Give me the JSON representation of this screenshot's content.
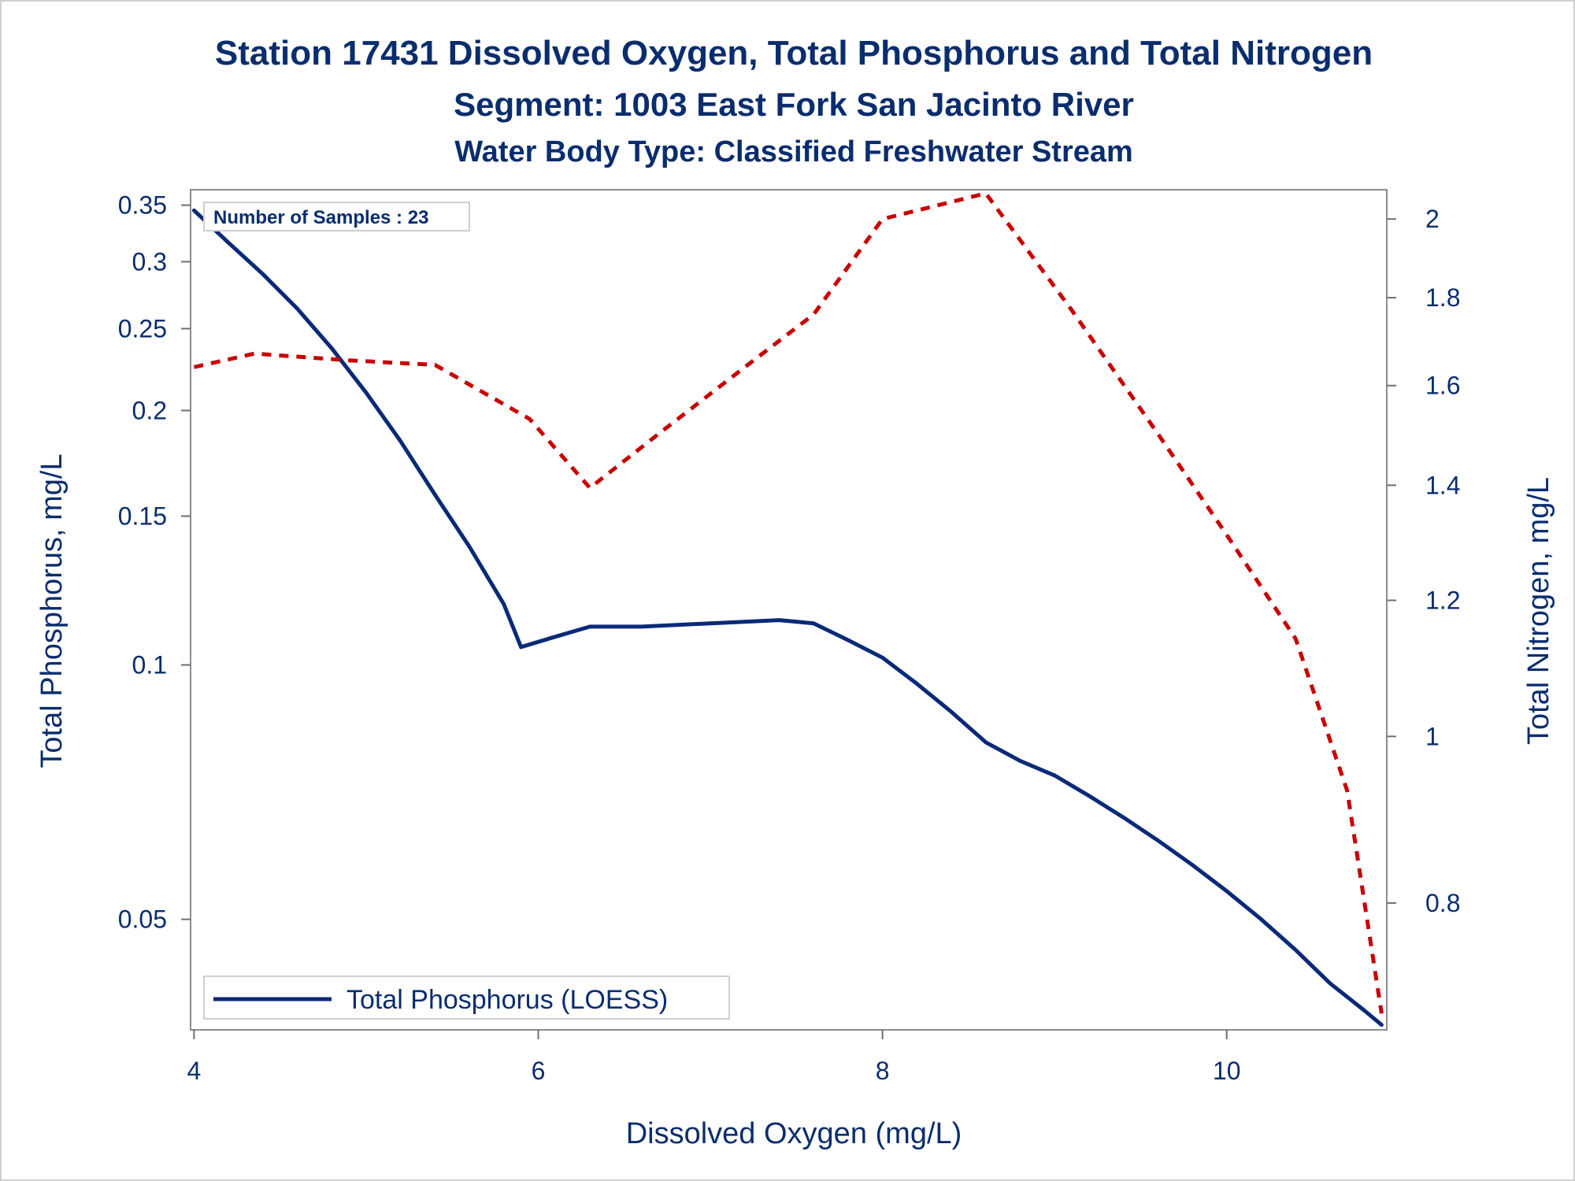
{
  "chart_data": {
    "type": "line",
    "title": "Station 17431  Dissolved Oxygen, Total Phosphorus and Total Nitrogen",
    "subtitle": "Segment: 1003  East Fork San Jacinto River",
    "subtitle2": "Water Body Type: Classified Freshwater Stream",
    "xlabel": "Dissolved Oxygen (mg/L)",
    "ylabel": "Total Phosphorus, mg/L",
    "y2label": "Total Nitrogen, mg/L",
    "xlim": [
      3.98,
      10.93
    ],
    "ylim": [
      0.037,
      0.365
    ],
    "yscale": "log",
    "y2lim": [
      0.675,
      2.08
    ],
    "y2scale": "log",
    "xticks": [
      4,
      6,
      8,
      10
    ],
    "yticks": [
      0.35,
      0.3,
      0.25,
      0.2,
      0.15,
      0.1,
      0.05
    ],
    "y2ticks": [
      2,
      1.8,
      1.6,
      1.4,
      1.2,
      1,
      0.8
    ],
    "xtick_labels": [
      "4",
      "6",
      "8",
      "10"
    ],
    "ytick_labels": [
      "0.35",
      "0.3",
      "0.25",
      "0.2",
      "0.15",
      "0.1",
      "0.05"
    ],
    "y2tick_labels": [
      "2",
      "1.8",
      "1.6",
      "1.4",
      "1.2",
      "1",
      "0.8"
    ],
    "annotation": "Number of Samples : 23",
    "legend": {
      "position": "bottom-left",
      "entries": [
        "Total Phosphorus (LOESS)"
      ]
    },
    "series": [
      {
        "name": "Total Phosphorus (LOESS)",
        "axis": "left",
        "color": "#0a2a78",
        "style": "solid",
        "x": [
          4.0,
          4.2,
          4.4,
          4.6,
          4.8,
          5.0,
          5.2,
          5.4,
          5.6,
          5.8,
          5.9,
          6.1,
          6.3,
          6.6,
          7.0,
          7.4,
          7.6,
          7.8,
          8.0,
          8.2,
          8.4,
          8.6,
          8.8,
          9.0,
          9.2,
          9.4,
          9.6,
          9.8,
          10.0,
          10.2,
          10.4,
          10.6,
          10.8,
          10.9
        ],
        "y": [
          0.345,
          0.316,
          0.29,
          0.264,
          0.237,
          0.21,
          0.184,
          0.159,
          0.138,
          0.118,
          0.105,
          0.108,
          0.111,
          0.111,
          0.112,
          0.113,
          0.112,
          0.107,
          0.102,
          0.095,
          0.088,
          0.081,
          0.077,
          0.074,
          0.07,
          0.066,
          0.062,
          0.058,
          0.054,
          0.05,
          0.046,
          0.042,
          0.039,
          0.0375
        ]
      },
      {
        "name": "",
        "axis": "right",
        "color": "#c80000",
        "style": "dashed",
        "x": [
          4.0,
          4.35,
          4.9,
          5.4,
          5.95,
          6.3,
          6.7,
          7.2,
          7.6,
          8.0,
          8.6,
          9.1,
          9.6,
          10.0,
          10.4,
          10.7,
          10.9
        ],
        "y": [
          1.64,
          1.67,
          1.655,
          1.645,
          1.53,
          1.395,
          1.5,
          1.64,
          1.76,
          2.0,
          2.07,
          1.77,
          1.5,
          1.31,
          1.14,
          0.93,
          0.69
        ]
      }
    ]
  }
}
